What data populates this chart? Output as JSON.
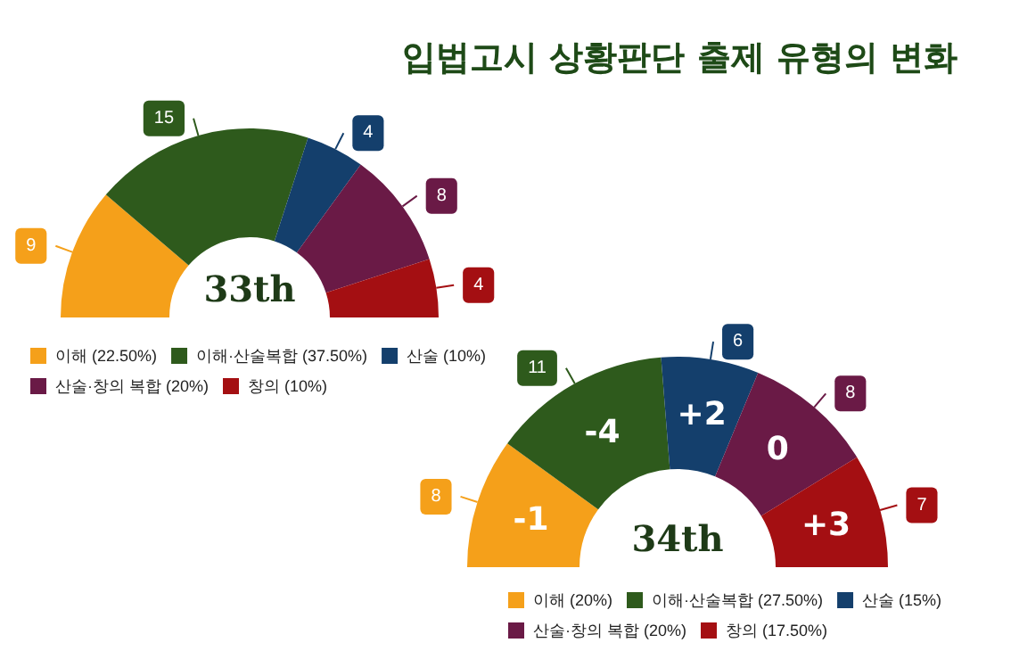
{
  "chart_data": [
    {
      "type": "donut",
      "title": "입법고시 상황판단 출제 유형의 변화",
      "categories": [
        "이해 (22.50%)",
        "이해·산술복합 (37.50%)",
        "산술 (10%)",
        "산술·창의 복합 (20%)",
        "창의 (10%)"
      ],
      "values": [
        9,
        15,
        4,
        8,
        4
      ],
      "colors": [
        "#f5a01a",
        "#2e5a1c",
        "#143f6c",
        "#6a1a46",
        "#a40f12"
      ],
      "data_labels": true,
      "legend": "bottom left",
      "annotations": [
        "33th"
      ]
    },
    {
      "type": "donut",
      "categories": [
        "이해 (20%)",
        "이해·산술복합 (27.50%)",
        "산술 (15%)",
        "산술·창의 복합 (20%)",
        "창의 (17.50%)"
      ],
      "values": [
        8,
        11,
        6,
        8,
        7
      ],
      "colors": [
        "#f5a01a",
        "#2e5a1c",
        "#143f6c",
        "#6a1a46",
        "#a40f12"
      ],
      "data_labels": true,
      "legend": "bottom right",
      "annotations": [
        "34th",
        {
          "text": "-1",
          "x": "이해 (20%)"
        },
        {
          "text": "-4",
          "x": "이해·산술복합 (27.50%)"
        },
        {
          "text": "+2",
          "x": "산술 (15%)"
        },
        {
          "text": "0",
          "x": "산술·창의 복합 (20%)"
        },
        {
          "text": "+3",
          "x": "창의 (17.50%)"
        }
      ]
    }
  ]
}
